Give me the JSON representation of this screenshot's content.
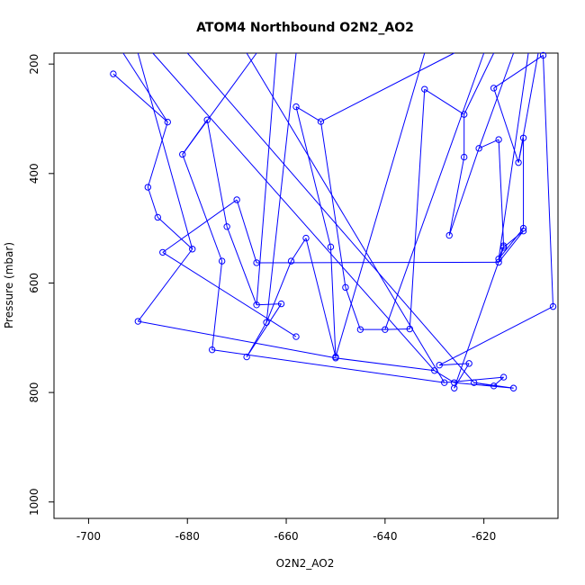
{
  "chart_data": {
    "type": "scatter",
    "title": "ATOM4 Northbound O2N2_AO2",
    "xlabel": "O2N2_AO2",
    "ylabel": "Pressure (mbar)",
    "xlim": [
      -707,
      -605
    ],
    "ylim": [
      1030,
      180
    ],
    "y_reversed": true,
    "x_ticks": [
      -700,
      -680,
      -660,
      -640,
      -620
    ],
    "y_ticks": [
      200,
      400,
      600,
      800,
      1000
    ],
    "grid": false,
    "legend": "none",
    "color": "#0000ff",
    "series": [
      {
        "marker": "open-circle",
        "connected": true,
        "points": [
          [
            -695,
            218
          ],
          [
            -684,
            306
          ],
          [
            -688,
            425
          ],
          [
            -686,
            480
          ],
          [
            -679,
            538
          ],
          [
            -690,
            670
          ],
          [
            -650,
            737
          ],
          [
            -630,
            760
          ],
          [
            -626,
            782
          ],
          [
            -614,
            792
          ],
          [
            -622,
            782
          ],
          [
            -618,
            788
          ],
          [
            -616,
            772
          ],
          [
            -628,
            782
          ],
          [
            -675,
            722
          ],
          [
            -673,
            560
          ],
          [
            -681,
            365
          ],
          [
            -676,
            302
          ],
          [
            -672,
            497
          ],
          [
            -666,
            640
          ],
          [
            -661,
            638
          ],
          [
            -668,
            735
          ],
          [
            -664,
            672
          ],
          [
            -659,
            560
          ],
          [
            -656,
            518
          ],
          [
            -650,
            735
          ],
          [
            -651,
            534
          ],
          [
            -658,
            278
          ],
          [
            -653,
            305
          ],
          [
            -648,
            608
          ],
          [
            -645,
            685
          ],
          [
            -640,
            685
          ],
          [
            -635,
            684
          ],
          [
            -632,
            246
          ],
          [
            -624,
            292
          ],
          [
            -624,
            370
          ],
          [
            -627,
            513
          ],
          [
            -621,
            354
          ],
          [
            -617,
            338
          ],
          [
            -616,
            532
          ],
          [
            -617,
            556
          ],
          [
            -612,
            500
          ],
          [
            -612,
            335
          ],
          [
            -613,
            380
          ],
          [
            -618,
            244
          ],
          [
            -608,
            184
          ],
          [
            -606,
            643
          ],
          [
            -629,
            750
          ],
          [
            -623,
            747
          ],
          [
            -626,
            792
          ],
          [
            -616,
            535
          ],
          [
            -612,
            505
          ],
          [
            -617,
            562
          ],
          [
            -666,
            563
          ],
          [
            -670,
            448
          ],
          [
            -685,
            544
          ],
          [
            -658,
            698
          ]
        ],
        "segments_to_top": [
          [
            -693,
            178
          ],
          [
            -690,
            178
          ],
          [
            -687,
            178
          ],
          [
            -680,
            178
          ],
          [
            -668,
            178
          ],
          [
            -666,
            178
          ],
          [
            -662,
            178
          ],
          [
            -658,
            178
          ],
          [
            -632,
            178
          ],
          [
            -626,
            178
          ],
          [
            -620,
            178
          ],
          [
            -618,
            178
          ],
          [
            -614,
            178
          ],
          [
            -611,
            178
          ],
          [
            -609,
            178
          ]
        ]
      }
    ]
  }
}
